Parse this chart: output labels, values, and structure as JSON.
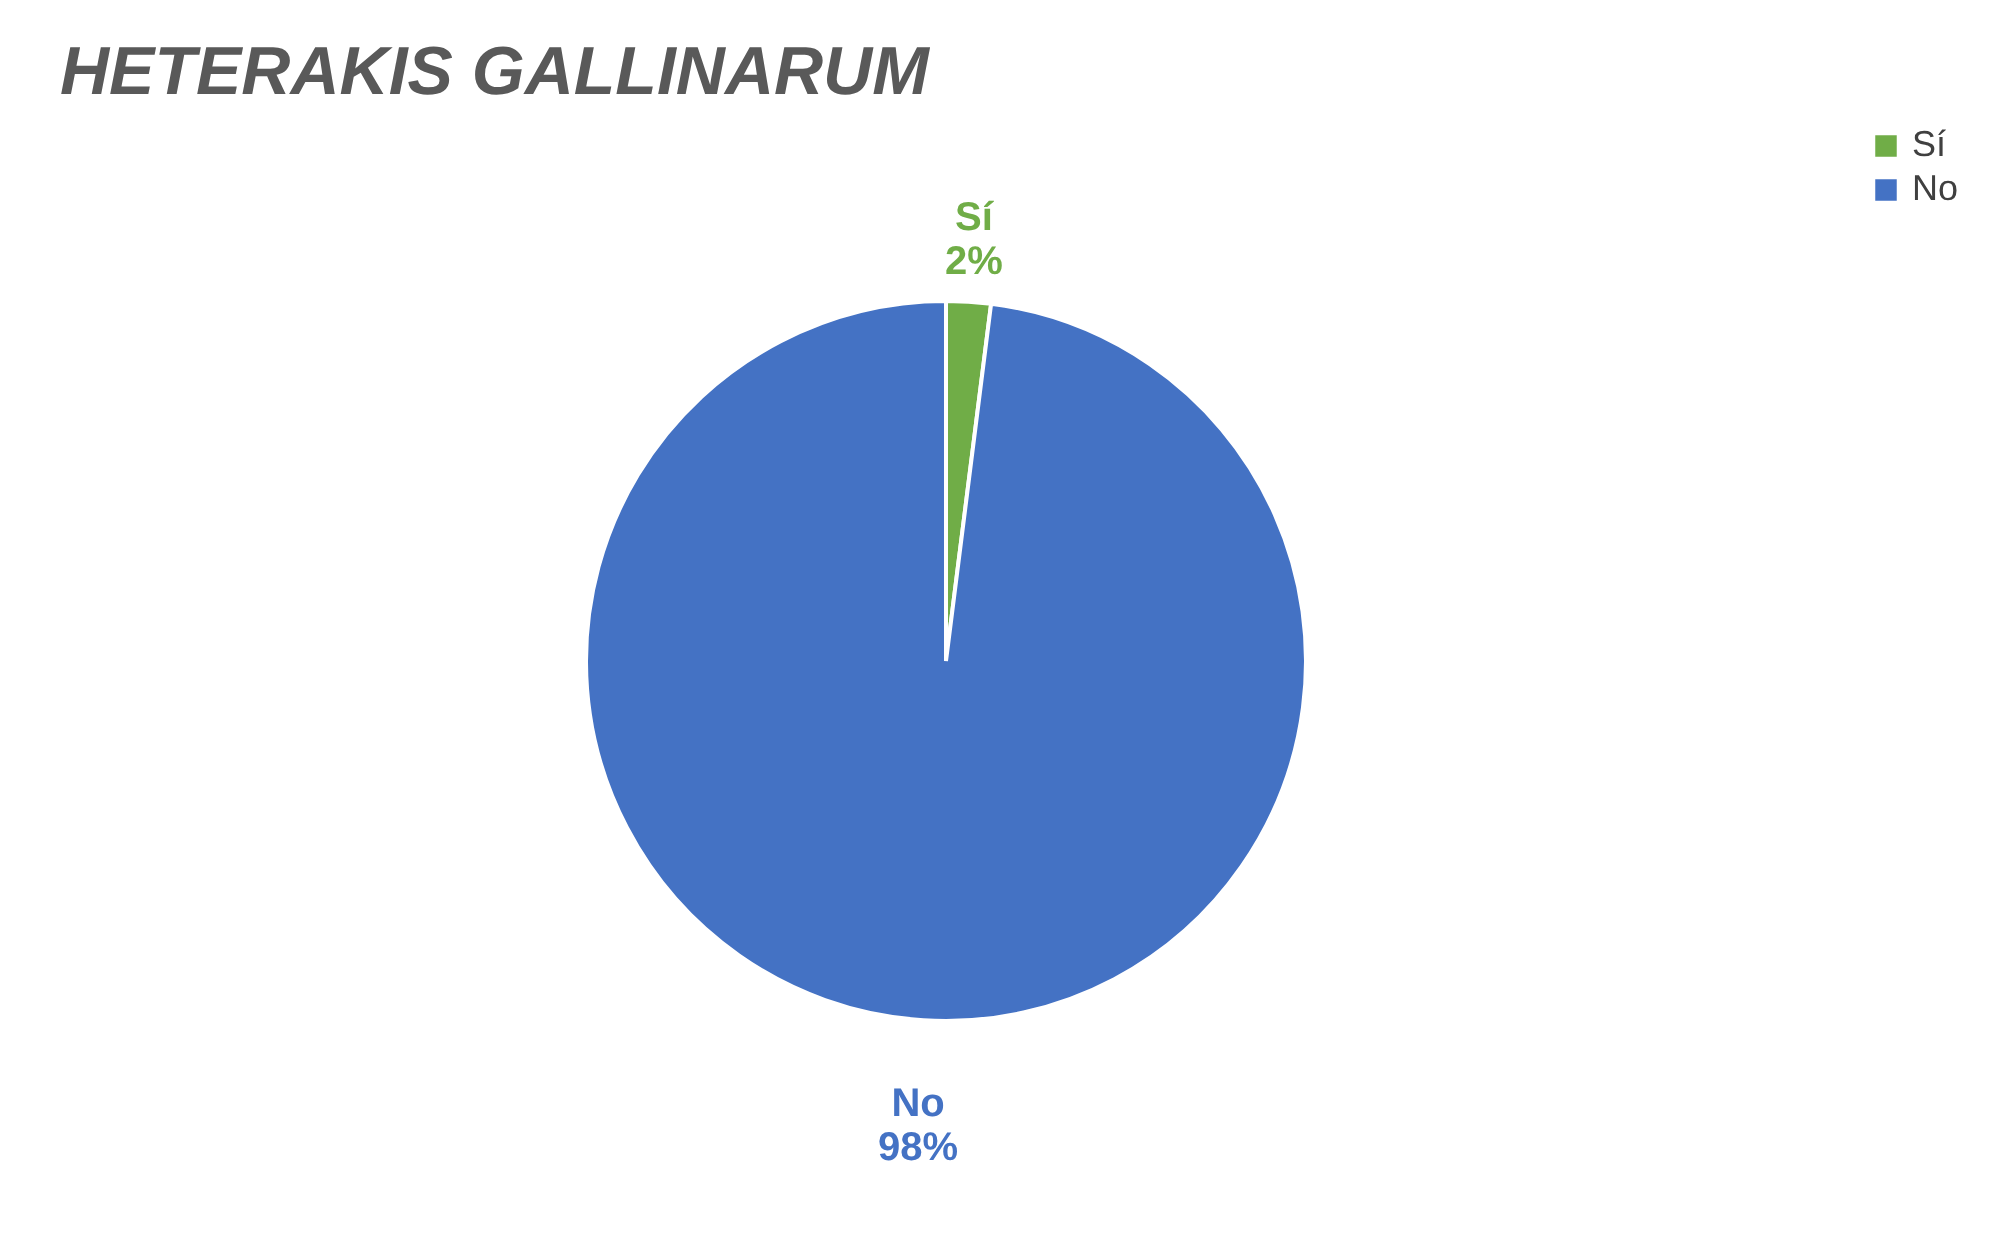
{
  "chart_data": {
    "type": "pie",
    "title": "HETERAKIS GALLINARUM",
    "categories": [
      "Sí",
      "No"
    ],
    "values": [
      2,
      98
    ],
    "colors": [
      "#70ad47",
      "#4472c4"
    ],
    "value_labels": [
      "2%",
      "98%"
    ],
    "legend": "right"
  }
}
